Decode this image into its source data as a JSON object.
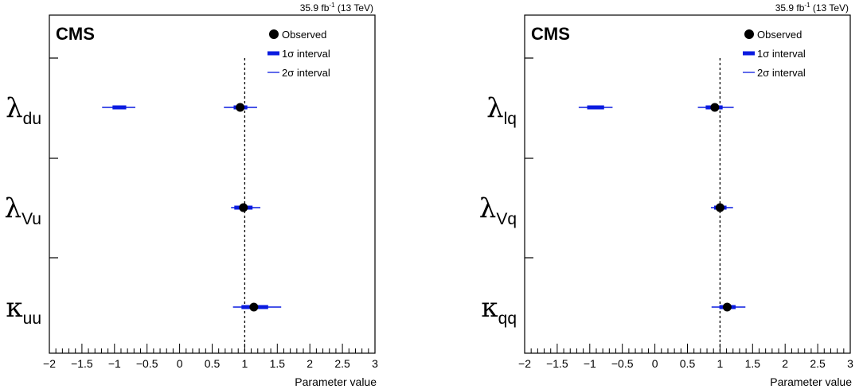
{
  "chart_data": [
    {
      "type": "scatter",
      "lumi_label": "35.9 fb",
      "lumi_exp": "-1",
      "lumi_energy": " (13 TeV)",
      "experiment": "CMS",
      "xlabel": "Parameter value",
      "xlim": [
        -2,
        3
      ],
      "xticks": [
        "−2",
        "−1.5",
        "−1",
        "−0.5",
        "0",
        "0.5",
        "1",
        "1.5",
        "2",
        "2.5",
        "3"
      ],
      "reference_line": 1,
      "legend": {
        "observed": "Observed",
        "one_sigma": "1σ interval",
        "two_sigma": "2σ interval",
        "position": "top-right"
      },
      "parameters": [
        {
          "symbol": "λ",
          "sub": "du",
          "best": 0.93,
          "one_sigma": [
            [
              -1.03,
              -0.82
            ],
            [
              0.83,
              1.04
            ]
          ],
          "two_sigma": [
            [
              -1.19,
              -0.68
            ],
            [
              0.68,
              1.19
            ]
          ]
        },
        {
          "symbol": "λ",
          "sub": "Vu",
          "best": 0.98,
          "one_sigma": [
            [
              0.84,
              1.12
            ]
          ],
          "two_sigma": [
            [
              0.79,
              1.24
            ]
          ]
        },
        {
          "symbol": "κ",
          "sub": "uu",
          "best": 1.14,
          "one_sigma": [
            [
              0.95,
              1.36
            ]
          ],
          "two_sigma": [
            [
              0.82,
              1.56
            ]
          ]
        }
      ]
    },
    {
      "type": "scatter",
      "lumi_label": "35.9 fb",
      "lumi_exp": "-1",
      "lumi_energy": " (13 TeV)",
      "experiment": "CMS",
      "xlabel": "Parameter value",
      "xlim": [
        -2,
        3
      ],
      "xticks": [
        "−2",
        "−1.5",
        "−1",
        "−0.5",
        "0",
        "0.5",
        "1",
        "1.5",
        "2",
        "2.5",
        "3"
      ],
      "reference_line": 1,
      "legend": {
        "observed": "Observed",
        "one_sigma": "1σ interval",
        "two_sigma": "2σ interval",
        "position": "top-right"
      },
      "parameters": [
        {
          "symbol": "λ",
          "sub": "lq",
          "best": 0.92,
          "one_sigma": [
            [
              -1.04,
              -0.78
            ],
            [
              0.78,
              1.04
            ]
          ],
          "two_sigma": [
            [
              -1.17,
              -0.65
            ],
            [
              0.66,
              1.21
            ]
          ]
        },
        {
          "symbol": "λ",
          "sub": "Vq",
          "best": 1.0,
          "one_sigma": [
            [
              0.91,
              1.1
            ]
          ],
          "two_sigma": [
            [
              0.86,
              1.2
            ]
          ]
        },
        {
          "symbol": "κ",
          "sub": "qq",
          "best": 1.11,
          "one_sigma": [
            [
              0.99,
              1.24
            ]
          ],
          "two_sigma": [
            [
              0.87,
              1.39
            ]
          ]
        }
      ]
    }
  ]
}
